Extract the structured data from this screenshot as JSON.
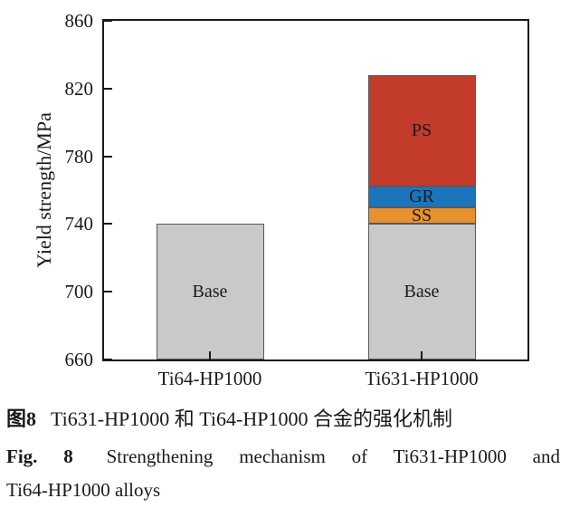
{
  "chart_data": {
    "type": "bar",
    "stacked": true,
    "title": "",
    "xlabel": "",
    "ylabel": "Yield strength/MPa",
    "ylim": [
      660,
      860
    ],
    "yticks": [
      860,
      820,
      780,
      740,
      700,
      660
    ],
    "grid": false,
    "legend": "none",
    "categories": [
      "Ti64-HP1000",
      "Ti631-HP1000"
    ],
    "bars": [
      {
        "category": "Ti64-HP1000",
        "total": 740,
        "segments": [
          {
            "label": "Base",
            "from": 660,
            "to": 740,
            "value": 740,
            "color": "#c9c9c9"
          }
        ]
      },
      {
        "category": "Ti631-HP1000",
        "total": 828,
        "segments": [
          {
            "label": "Base",
            "from": 660,
            "to": 740,
            "value": 740,
            "color": "#c9c9c9"
          },
          {
            "label": "SS",
            "from": 740,
            "to": 750,
            "value": 10,
            "color": "#e8912f"
          },
          {
            "label": "GR",
            "from": 750,
            "to": 762,
            "value": 12,
            "color": "#1a75bc"
          },
          {
            "label": "PS",
            "from": 762,
            "to": 828,
            "value": 66,
            "color": "#c23b2b"
          }
        ]
      }
    ],
    "colors": {
      "base_segment": "#c9c9c9",
      "ss_segment": "#e8912f",
      "gr_segment": "#1a75bc",
      "ps_segment": "#c23b2b",
      "bar_border": "#595959",
      "axis": "#1a1a1a"
    }
  },
  "captions": {
    "zh_prefix": "图8",
    "zh_text": "Ti631-HP1000 和 Ti64-HP1000 合金的强化机制",
    "en_prefix": "Fig. 8",
    "en_line1": "Strengthening mechanism of Ti631-HP1000 and",
    "en_line2": "Ti64-HP1000 alloys"
  }
}
